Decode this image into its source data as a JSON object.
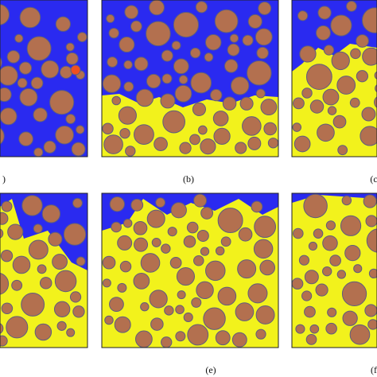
{
  "panels": [
    {
      "label": ")"
    },
    {
      "label": "(b)"
    },
    {
      "label": "(c"
    },
    {
      "label": ""
    },
    {
      "label": "(e)"
    },
    {
      "label": "(f"
    }
  ]
}
